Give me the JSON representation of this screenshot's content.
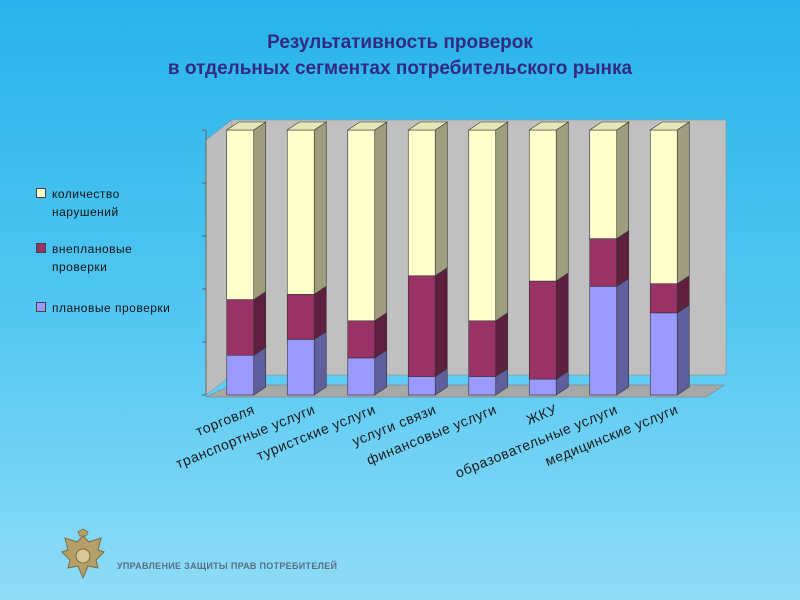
{
  "header": {
    "title_line1": "Результативность проверок",
    "title_line2": "в отдельных сегментах потребительского рынка"
  },
  "chart_data": {
    "type": "bar",
    "stacked": true,
    "style": "3d",
    "title": "Результативность проверок в отдельных сегментах потребительского рынка",
    "categories": [
      "торговля",
      "транспортные услуги",
      "туристские услуги",
      "услуги связи",
      "финансовые услуги",
      "ЖКУ",
      "образовательные услуги",
      "медицинские услуги"
    ],
    "series": [
      {
        "name": "плановые проверки",
        "color": "#9999ff",
        "values": [
          15,
          21,
          14,
          7,
          7,
          6,
          41,
          31
        ]
      },
      {
        "name": "внеплановые проверки",
        "color": "#993366",
        "values": [
          21,
          17,
          14,
          38,
          21,
          37,
          18,
          11
        ]
      },
      {
        "name": "количество нарушений",
        "color": "#ffffcc",
        "values": [
          64,
          62,
          72,
          55,
          72,
          57,
          41,
          58
        ]
      }
    ],
    "ylim": [
      0,
      100
    ],
    "grid": false,
    "legend_position": "left"
  },
  "legend": {
    "items": [
      {
        "label": "количество нарушений",
        "color": "#ffffcc"
      },
      {
        "label": "внеплановые проверки",
        "color": "#993366"
      },
      {
        "label": "плановые проверки",
        "color": "#9999ff"
      }
    ]
  },
  "footer": {
    "org_name": "УПРАВЛЕНИЕ ЗАЩИТЫ ПРАВ ПОТРЕБИТЕЛЕЙ"
  },
  "colors": {
    "background_top": "#27b3ea",
    "title": "#332a80",
    "plot_wall": "#c0c0c0"
  }
}
